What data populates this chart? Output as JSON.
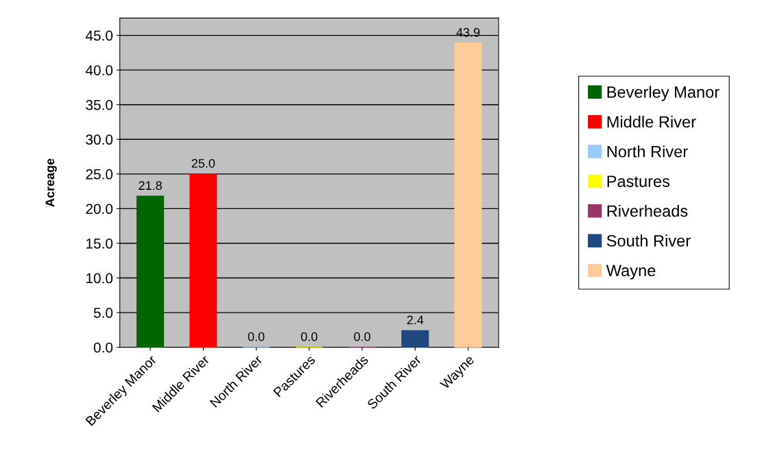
{
  "chart_data": {
    "type": "bar",
    "ylabel": "Acreage",
    "categories": [
      "Beverley Manor",
      "Middle River",
      "North River",
      "Pastures",
      "Riverheads",
      "South River",
      "Wayne"
    ],
    "series": [
      {
        "name": "Beverley Manor",
        "color": "#006600",
        "values": [
          21.8,
          null,
          null,
          null,
          null,
          null,
          null
        ],
        "value_labels": [
          "21.8",
          null,
          null,
          null,
          null,
          null,
          null
        ]
      },
      {
        "name": "Middle River",
        "color": "#ff0000",
        "values": [
          null,
          25.0,
          null,
          null,
          null,
          null,
          null
        ],
        "value_labels": [
          null,
          "25.0",
          null,
          null,
          null,
          null,
          null
        ]
      },
      {
        "name": "North River",
        "color": "#99ccff",
        "values": [
          null,
          null,
          0.0,
          null,
          null,
          null,
          null
        ],
        "value_labels": [
          null,
          null,
          "0.0",
          null,
          null,
          null,
          null
        ]
      },
      {
        "name": "Pastures",
        "color": "#ffff00",
        "values": [
          null,
          null,
          null,
          0.0,
          null,
          null,
          null
        ],
        "value_labels": [
          null,
          null,
          null,
          "0.0",
          null,
          null,
          null
        ]
      },
      {
        "name": "Riverheads",
        "color": "#993366",
        "values": [
          null,
          null,
          null,
          null,
          0.0,
          null,
          null
        ],
        "value_labels": [
          null,
          null,
          null,
          null,
          "0.0",
          null,
          null
        ]
      },
      {
        "name": "South River",
        "color": "#1f497d",
        "values": [
          null,
          null,
          null,
          null,
          null,
          2.4,
          null
        ],
        "value_labels": [
          null,
          null,
          null,
          null,
          null,
          "2.4",
          null
        ]
      },
      {
        "name": "Wayne",
        "color": "#ffcc99",
        "values": [
          null,
          null,
          null,
          null,
          null,
          null,
          43.9
        ],
        "value_labels": [
          null,
          null,
          null,
          null,
          null,
          null,
          "43.9"
        ]
      }
    ],
    "ylim": [
      0,
      47.5
    ],
    "yticks": [
      {
        "value": 0,
        "label": "0.0"
      },
      {
        "value": 5,
        "label": "5.0"
      },
      {
        "value": 10,
        "label": "10.0"
      },
      {
        "value": 15,
        "label": "15.0"
      },
      {
        "value": 20,
        "label": "20.0"
      },
      {
        "value": 25,
        "label": "25.0"
      },
      {
        "value": 30,
        "label": "30.0"
      },
      {
        "value": 35,
        "label": "35.0"
      },
      {
        "value": 40,
        "label": "40.0"
      },
      {
        "value": 45,
        "label": "45.0"
      }
    ],
    "grid": "y",
    "legend": "right"
  }
}
